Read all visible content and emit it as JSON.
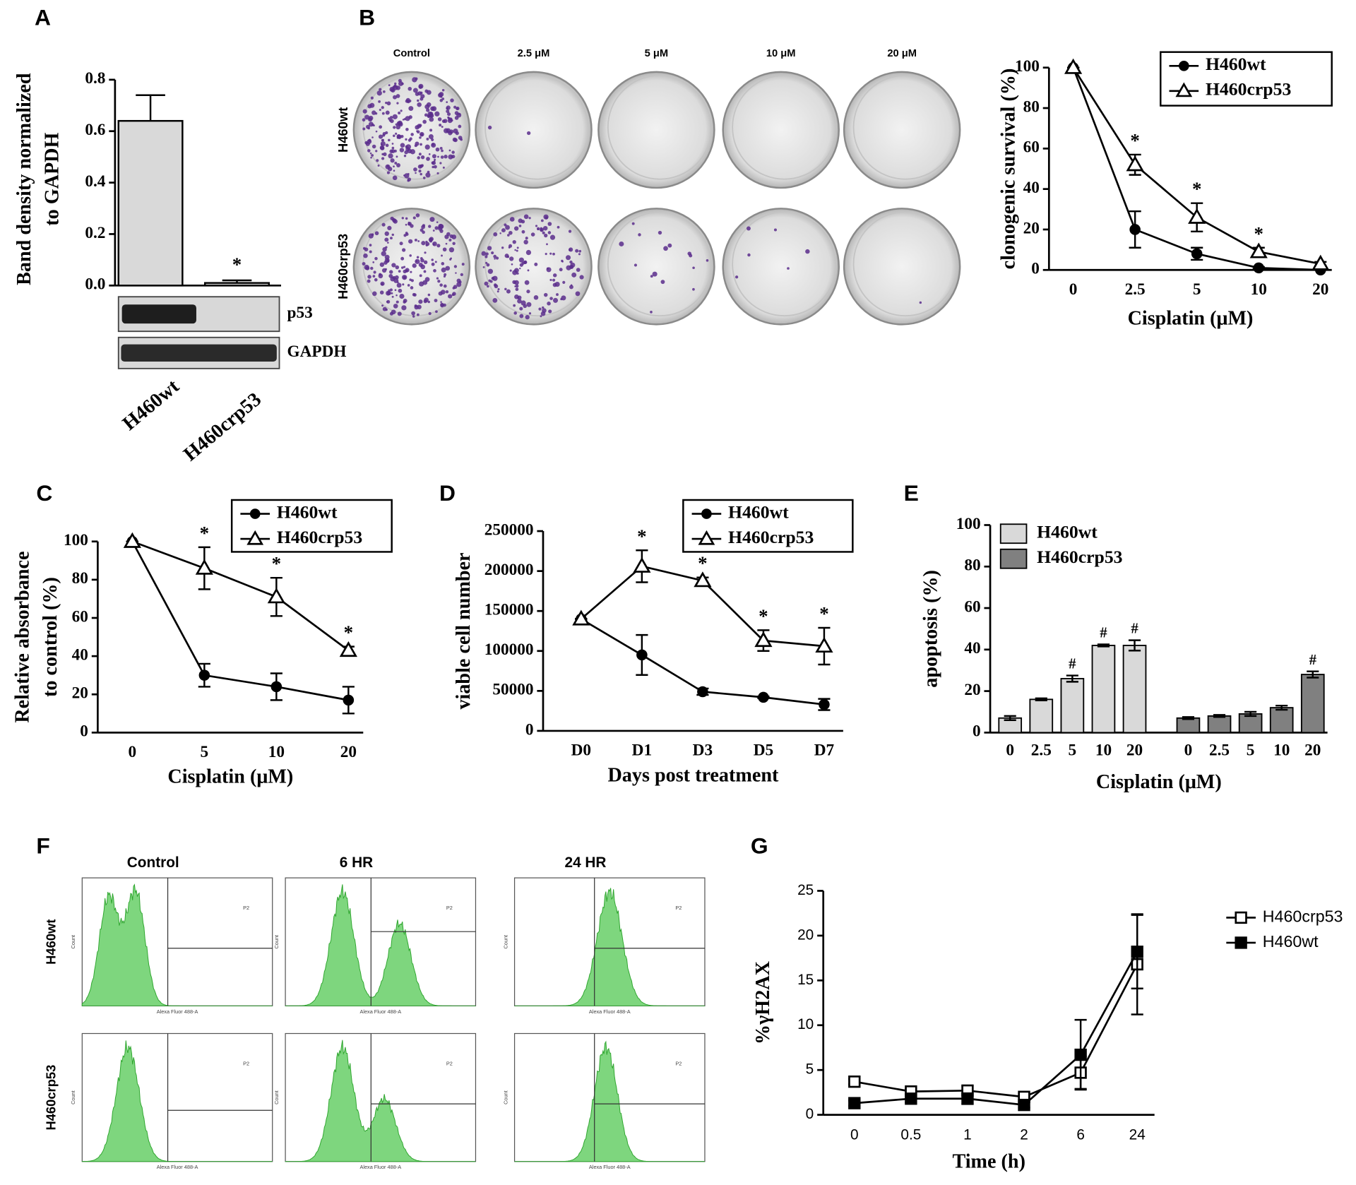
{
  "chart_data": [
    {
      "type": "bar",
      "panel": "A",
      "ylabel": [
        "Band density normalized",
        "to GAPDH"
      ],
      "categories": [
        "H460wt",
        "H460crp53"
      ],
      "values": [
        0.64,
        0.01
      ],
      "errors": [
        0.1,
        0.01
      ],
      "annotations": [
        null,
        "*"
      ],
      "color": "#d9d9d9",
      "ylim": [
        0,
        0.8
      ],
      "yticks": [
        {
          "value": 0,
          "label": "0.0"
        },
        0.2,
        0.4,
        0.6,
        0.8
      ],
      "blot_labels": [
        "p53",
        "GAPDH"
      ]
    },
    {
      "type": "plates",
      "panel": "B",
      "columns": [
        "Control",
        "2.5 μM",
        "5 μM",
        "10 μM",
        "20 μM"
      ],
      "rows": [
        "H460wt",
        "H460crp53"
      ]
    },
    {
      "type": "line",
      "xlabel": "Cisplatin (μM)",
      "ylabel": [
        "clonogenic survival (%)"
      ],
      "categories": [
        "0",
        "2.5",
        "5",
        "10",
        "20"
      ],
      "series": [
        {
          "name": "H460wt",
          "marker": "circle",
          "filled": true,
          "values": [
            100,
            20,
            8,
            1,
            0
          ],
          "errors": [
            0,
            9,
            3,
            0.5,
            0
          ]
        },
        {
          "name": "H460crp53",
          "marker": "triangle",
          "filled": false,
          "values": [
            100,
            52,
            26,
            9,
            3
          ],
          "errors": [
            0,
            5,
            7,
            2,
            1
          ],
          "annotations": [
            null,
            "*",
            "*",
            "*",
            null
          ]
        }
      ],
      "ylim": [
        0,
        100
      ],
      "yticks": [
        0,
        20,
        40,
        60,
        80,
        100
      ],
      "legend": "upper right"
    },
    {
      "type": "line",
      "panel": "C",
      "xlabel": "Cisplatin (μM)",
      "ylabel": [
        "Relative absorbance",
        "to control (%)"
      ],
      "categories": [
        "0",
        "5",
        "10",
        "20"
      ],
      "series": [
        {
          "name": "H460wt",
          "marker": "circle",
          "filled": true,
          "values": [
            100,
            30,
            24,
            17
          ],
          "errors": [
            0,
            6,
            7,
            7
          ]
        },
        {
          "name": "H460crp53",
          "marker": "triangle",
          "filled": false,
          "values": [
            100,
            86,
            71,
            43
          ],
          "errors": [
            0,
            11,
            10,
            2
          ],
          "annotations": [
            null,
            "*",
            "*",
            "*"
          ]
        }
      ],
      "ylim": [
        0,
        100
      ],
      "yticks": [
        0,
        20,
        40,
        60,
        80,
        100
      ],
      "legend": "upper right"
    },
    {
      "type": "line",
      "panel": "D",
      "xlabel": "Days post treatment",
      "ylabel": [
        "viable cell number"
      ],
      "categories": [
        "D0",
        "D1",
        "D3",
        "D5",
        "D7"
      ],
      "series": [
        {
          "name": "H460wt",
          "marker": "circle",
          "filled": true,
          "values": [
            140000,
            95000,
            49000,
            42000,
            33000
          ],
          "errors": [
            0,
            25000,
            4000,
            1000,
            7000
          ]
        },
        {
          "name": "H460crp53",
          "marker": "triangle",
          "filled": false,
          "values": [
            140000,
            206000,
            188000,
            113000,
            106000
          ],
          "errors": [
            0,
            20000,
            4000,
            13000,
            23000
          ],
          "annotations": [
            null,
            "*",
            "*",
            "*",
            "*"
          ]
        }
      ],
      "ylim": [
        0,
        250000
      ],
      "yticks": [
        0,
        50000,
        100000,
        150000,
        200000,
        250000
      ],
      "legend": "upper right"
    },
    {
      "type": "grouped-bar",
      "panel": "E",
      "xlabel": "Cisplatin (μM)",
      "ylabel": [
        "apoptosis  (%)"
      ],
      "categories": [
        "0",
        "2.5",
        "5",
        "10",
        "20"
      ],
      "series": [
        {
          "name": "H460wt",
          "color": "#d9d9d9",
          "values": [
            7,
            16,
            26,
            42,
            42
          ],
          "errors": [
            1,
            0.5,
            1.5,
            0.5,
            2.5
          ],
          "annotations": [
            null,
            null,
            "#",
            "#",
            "#"
          ]
        },
        {
          "name": "H460crp53",
          "color": "#808080",
          "values": [
            7,
            8,
            9,
            12,
            28
          ],
          "errors": [
            0.5,
            0.5,
            1,
            1,
            1.5
          ],
          "annotations": [
            null,
            null,
            null,
            null,
            "#"
          ]
        }
      ],
      "ylim": [
        0,
        100
      ],
      "yticks": [
        0,
        20,
        40,
        60,
        80,
        100
      ],
      "legend": "upper left"
    },
    {
      "type": "flow",
      "panel": "F",
      "columns": [
        "Control",
        "6 HR",
        "24 HR"
      ],
      "rows": [
        "H460wt",
        "H460crp53"
      ],
      "xlabel": "Alexa Fluor 488-A",
      "ylabel": "Count",
      "gate": "P2"
    },
    {
      "type": "line",
      "panel": "G",
      "xlabel": "Time (h)",
      "ylabel": [
        "%γH2AX"
      ],
      "categories": [
        "0",
        "0.5",
        "1",
        "2",
        "6",
        "24"
      ],
      "series": [
        {
          "name": "H460crp53",
          "marker": "square",
          "filled": false,
          "values": [
            3.7,
            2.6,
            2.7,
            2.0,
            4.7,
            16.8
          ],
          "errors": [
            0.3,
            0.3,
            0.5,
            0.4,
            1.8,
            5.6
          ]
        },
        {
          "name": "H460wt",
          "marker": "square",
          "filled": true,
          "values": [
            1.3,
            1.8,
            1.8,
            1.1,
            6.7,
            18.2
          ],
          "errors": [
            0.3,
            0.4,
            0.6,
            0.3,
            3.9,
            4.1
          ]
        }
      ],
      "ylim": [
        0,
        25
      ],
      "yticks": [
        0,
        5,
        10,
        15,
        20,
        25
      ],
      "legend": "right"
    }
  ]
}
